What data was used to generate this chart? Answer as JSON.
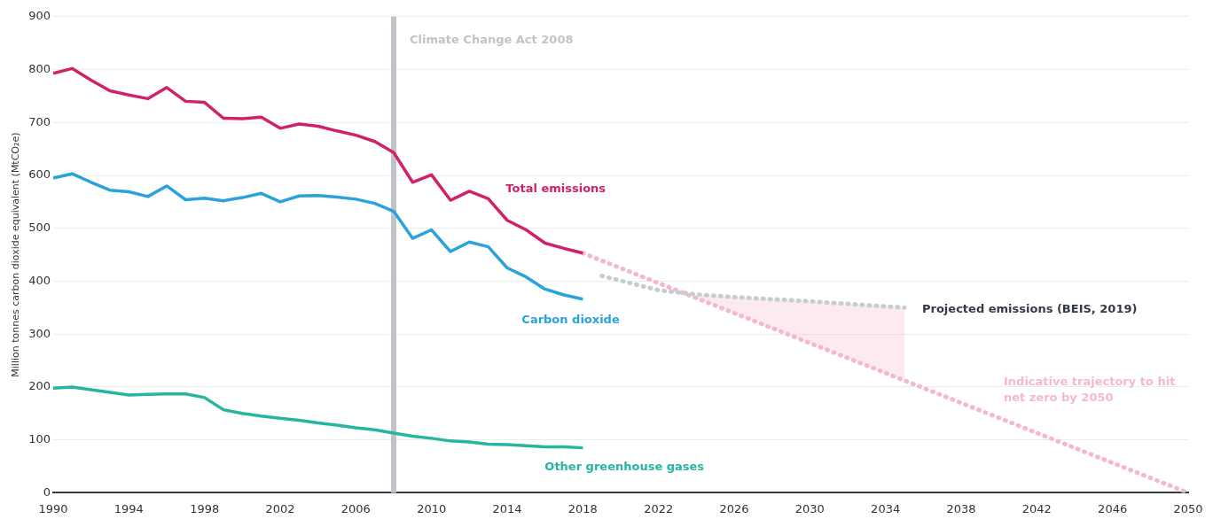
{
  "chart_data": {
    "type": "line",
    "ylabel": "Million tonnes carbon dioxide equivalent (MtCO₂e)",
    "xlim": [
      1990,
      2050
    ],
    "xticks": [
      1990,
      1994,
      1998,
      2002,
      2006,
      2010,
      2014,
      2018,
      2022,
      2026,
      2030,
      2034,
      2038,
      2042,
      2046,
      2050
    ],
    "ylim": [
      0,
      900
    ],
    "yticks": [
      0,
      100,
      200,
      300,
      400,
      500,
      600,
      700,
      800,
      900
    ],
    "grid": "y",
    "legend": false,
    "marker": "none",
    "x": [
      1990,
      1991,
      1992,
      1993,
      1994,
      1995,
      1996,
      1997,
      1998,
      1999,
      2000,
      2001,
      2002,
      2003,
      2004,
      2005,
      2006,
      2007,
      2008,
      2009,
      2010,
      2011,
      2012,
      2013,
      2014,
      2015,
      2016,
      2017,
      2018
    ],
    "series": [
      {
        "name": "Total emissions",
        "color": "#d0226a",
        "values": [
          793,
          802,
          780,
          760,
          752,
          745,
          766,
          740,
          738,
          708,
          707,
          710,
          689,
          697,
          693,
          684,
          676,
          664,
          643,
          587,
          601,
          553,
          570,
          556,
          515,
          497,
          472,
          462,
          453
        ]
      },
      {
        "name": "Carbon dioxide",
        "color": "#2aa3dc",
        "values": [
          595,
          603,
          587,
          572,
          569,
          560,
          580,
          554,
          557,
          552,
          558,
          566,
          550,
          561,
          562,
          559,
          555,
          547,
          532,
          481,
          497,
          456,
          474,
          465,
          425,
          408,
          385,
          374,
          366
        ]
      },
      {
        "name": "Other greenhouse gases",
        "color": "#26b5a0",
        "values": [
          198,
          200,
          195,
          190,
          185,
          186,
          187,
          187,
          180,
          157,
          150,
          145,
          141,
          137,
          132,
          128,
          123,
          119,
          113,
          107,
          103,
          98,
          96,
          92,
          91,
          89,
          87,
          87,
          85
        ]
      },
      {
        "name": "Projected emissions (BEIS, 2019)",
        "color": "#c5ccd4",
        "line_style": "dotted",
        "x": [
          2019,
          2022,
          2024,
          2026,
          2030,
          2035
        ],
        "values": [
          410,
          383,
          375,
          370,
          362,
          350
        ],
        "lower": [
          null,
          null,
          368,
          340,
          283,
          212
        ],
        "upper": [
          null,
          null,
          375,
          370,
          362,
          350
        ]
      },
      {
        "name": "Indicative trajectory to hit net zero by 2050",
        "color": "#f6b8cf",
        "line_style": "dotted",
        "x": [
          2018,
          2050
        ],
        "values": [
          453,
          0
        ]
      }
    ],
    "ref_lines": [
      {
        "axis": "x",
        "value": 2008,
        "label": "Climate Change Act 2008",
        "color": "#c0c4c8"
      }
    ]
  }
}
